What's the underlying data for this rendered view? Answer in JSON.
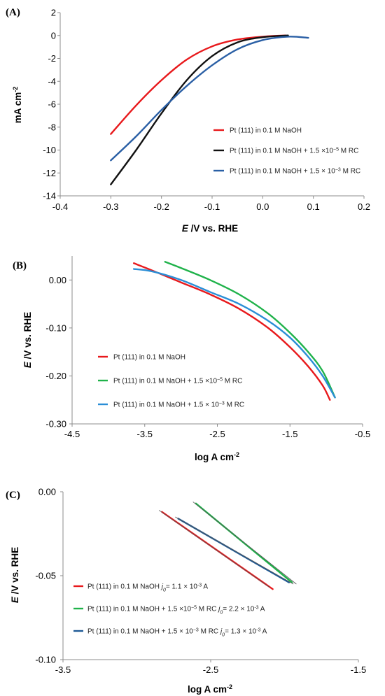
{
  "chart_data": [
    {
      "panel": "(A)",
      "type": "line",
      "xlabel": "E /V vs. RHE",
      "xlabel_italic": "E",
      "xlabel_rest": " /V vs. RHE",
      "ylabel": "mA cm-2",
      "ylabel_main": "mA cm",
      "ylabel_sup": "-2",
      "xlim": [
        -0.4,
        0.2
      ],
      "ylim": [
        -14,
        2
      ],
      "xticks": [
        -0.4,
        -0.3,
        -0.2,
        -0.1,
        0.0,
        0.1,
        0.2
      ],
      "xtick_labels": [
        "-0.4",
        "-0.3",
        "-0.2",
        "-0.1",
        "0.0",
        "0.1",
        "0.2"
      ],
      "yticks": [
        2,
        0,
        -2,
        -4,
        -6,
        -8,
        -10,
        -12,
        -14
      ],
      "ytick_labels": [
        "2",
        "0",
        "-2",
        "-4",
        "-6",
        "-8",
        "-10",
        "-12",
        "-14"
      ],
      "grid": false,
      "legend_position": "right",
      "series": [
        {
          "name": "Pt (111) in 0.1 M NaOH",
          "color": "#e8191c",
          "legend": {
            "pre": "Pt (111) in 0.1 M NaOH",
            "sup": "",
            "post": ""
          },
          "x": [
            -0.3,
            -0.25,
            -0.2,
            -0.15,
            -0.1,
            -0.05,
            0.0,
            0.045
          ],
          "y": [
            -8.6,
            -6.1,
            -3.9,
            -2.1,
            -0.95,
            -0.35,
            -0.1,
            0.0
          ]
        },
        {
          "name": "Pt (111) in 0.1 M NaOH + 1.5 ×10-5 M RC",
          "color": "#111111",
          "legend": {
            "pre": "Pt (111) in 0.1 M NaOH + 1.5 ×10",
            "sup": "−5",
            "post": " M  RC"
          },
          "x": [
            -0.3,
            -0.25,
            -0.2,
            -0.15,
            -0.1,
            -0.05,
            0.0,
            0.05
          ],
          "y": [
            -13.0,
            -10.0,
            -6.8,
            -3.9,
            -1.8,
            -0.6,
            -0.15,
            0.0
          ]
        },
        {
          "name": "Pt (111) in 0.1 M NaOH + 1.5 × 10-3 M RC",
          "color": "#2a5fa5",
          "legend": {
            "pre": "Pt (111) in 0.1 M NaOH + 1.5 × 10",
            "sup": "−3",
            "post": " M RC"
          },
          "x": [
            -0.3,
            -0.25,
            -0.2,
            -0.15,
            -0.1,
            -0.05,
            0.0,
            0.05,
            0.09
          ],
          "y": [
            -10.9,
            -8.8,
            -6.5,
            -4.4,
            -2.6,
            -1.2,
            -0.4,
            -0.1,
            -0.2
          ]
        }
      ]
    },
    {
      "panel": "(B)",
      "type": "line",
      "xlabel": "log A cm-2",
      "xlabel_main": "log A cm",
      "xlabel_sup": "-2",
      "ylabel": "E /V vs. RHE",
      "ylabel_italic": "E",
      "ylabel_rest": " /V vs. RHE",
      "xlim": [
        -4.5,
        -0.5
      ],
      "ylim": [
        -0.3,
        0.05
      ],
      "xticks": [
        -4.5,
        -3.5,
        -2.5,
        -1.5,
        -0.5
      ],
      "xtick_labels": [
        "-4.5",
        "-3.5",
        "-2.5",
        "-1.5",
        "-0.5"
      ],
      "yticks": [
        0.0,
        -0.1,
        -0.2,
        -0.3
      ],
      "ytick_labels": [
        "0.00",
        "-0.10",
        "-0.20",
        "-0.30"
      ],
      "grid": false,
      "legend_position": "bottom-left",
      "series": [
        {
          "name": "Pt (111) in 0.1 M NaOH",
          "color": "#e8191c",
          "legend": {
            "pre": "Pt (111) in 0.1 M NaOH",
            "sup": "",
            "post": ""
          },
          "x": [
            -3.65,
            -3.4,
            -3.0,
            -2.6,
            -2.2,
            -1.8,
            -1.5,
            -1.25,
            -1.05,
            -0.95
          ],
          "y": [
            0.035,
            0.02,
            -0.005,
            -0.03,
            -0.06,
            -0.1,
            -0.14,
            -0.18,
            -0.22,
            -0.25
          ]
        },
        {
          "name": "Pt (111) in 0.1 M NaOH + 1.5 ×10-5 M RC",
          "color": "#1fb24a",
          "legend": {
            "pre": "Pt (111) in 0.1 M NaOH + 1.5 ×10",
            "sup": "−5",
            "post": "  M  RC"
          },
          "x": [
            -3.22,
            -3.0,
            -2.6,
            -2.2,
            -1.8,
            -1.5,
            -1.25,
            -1.05,
            -0.88
          ],
          "y": [
            0.038,
            0.025,
            0.0,
            -0.03,
            -0.07,
            -0.11,
            -0.15,
            -0.19,
            -0.245
          ]
        },
        {
          "name": "Pt (111) in 0.1 M NaOH + 1.5 × 10-3 M RC",
          "color": "#2a8ed6",
          "legend": {
            "pre": "Pt (111) in 0.1 M NaOH + 1.5 × 10",
            "sup": "−3",
            "post": " M RC"
          },
          "x": [
            -3.65,
            -3.4,
            -3.0,
            -2.6,
            -2.2,
            -1.8,
            -1.5,
            -1.25,
            -1.05,
            -0.88
          ],
          "y": [
            0.023,
            0.018,
            0.0,
            -0.025,
            -0.05,
            -0.085,
            -0.12,
            -0.16,
            -0.2,
            -0.245
          ]
        }
      ]
    },
    {
      "panel": "(C)",
      "type": "line",
      "xlabel": "log A cm-2",
      "xlabel_main": "log A cm",
      "xlabel_sup": "-2",
      "ylabel": "E /V vs. RHE",
      "ylabel_italic": "E",
      "ylabel_rest": " /V vs. RHE",
      "xlim": [
        -3.5,
        -1.5
      ],
      "ylim": [
        -0.1,
        0.0
      ],
      "xticks": [
        -3.5,
        -2.5,
        -1.5
      ],
      "xtick_labels": [
        "-3.5",
        "-2.5",
        "-1.5"
      ],
      "yticks": [
        0.0,
        -0.05,
        -0.1
      ],
      "ytick_labels": [
        "0.00",
        "-0.05",
        "-0.10"
      ],
      "grid": false,
      "legend_position": "bottom-left",
      "series": [
        {
          "name": "Pt (111) in 0.1 M NaOH",
          "color": "#e8191c",
          "legend": {
            "pre": "Pt (111) in 0.1 M NaOH",
            "sup": "",
            "post": "",
            "j_val": "= 1.1 × 10",
            "j_exp": "-3",
            "j_unit": " A"
          },
          "x": [
            -2.83,
            -2.08
          ],
          "y": [
            -0.012,
            -0.058
          ]
        },
        {
          "name": "Pt (111) in 0.1 M NaOH + 1.5 ×10-5 M RC",
          "color": "#1fb24a",
          "legend": {
            "pre": "Pt (111) in 0.1 M NaOH + 1.5 ×10",
            "sup": "−5",
            "post": " M  RC",
            "j_val": "= 2.2 × 10",
            "j_exp": "-3",
            "j_unit": " A"
          },
          "x": [
            -2.6,
            -1.95
          ],
          "y": [
            -0.007,
            -0.054
          ]
        },
        {
          "name": "Pt (111) in 0.1 M NaOH + 1.5 × 10-3 M RC",
          "color": "#1e5a96",
          "legend": {
            "pre": "Pt (111) in 0.1 M NaOH + 1.5 × 10",
            "sup": "−3",
            "post": " M RC",
            "j_val": "= 1.3 × 10",
            "j_exp": "-3",
            "j_unit": " A"
          },
          "x": [
            -2.72,
            -1.97
          ],
          "y": [
            -0.016,
            -0.054
          ]
        }
      ],
      "fit_lines": [
        {
          "color": "#555555",
          "x": [
            -2.85,
            -2.1
          ],
          "y": [
            -0.011,
            -0.057
          ]
        },
        {
          "color": "#555555",
          "x": [
            -2.62,
            -1.92
          ],
          "y": [
            -0.006,
            -0.055
          ]
        },
        {
          "color": "#555555",
          "x": [
            -2.74,
            -1.94
          ],
          "y": [
            -0.015,
            -0.055
          ]
        }
      ]
    }
  ]
}
